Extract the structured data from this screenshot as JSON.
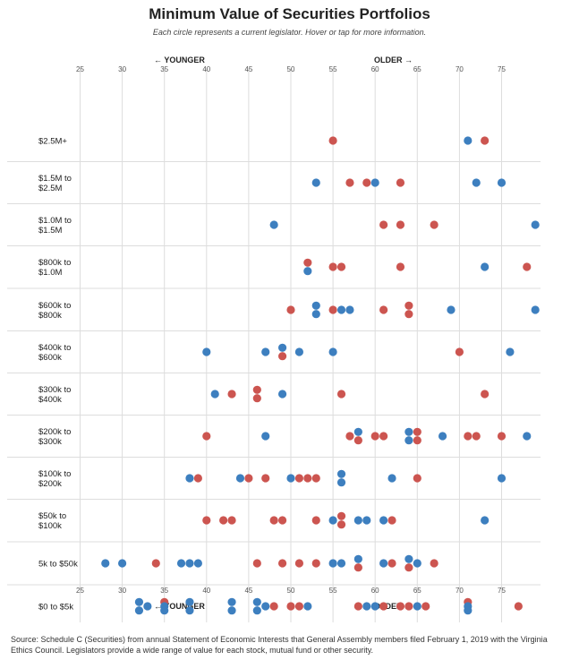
{
  "title": "Minimum Value of Securities Portfolios",
  "subtitle": "Each circle represents a current legislator. Hover or tap for more information.",
  "source": "Source: Schedule C (Securities) from annual Statement of Economic Interests that General Assembly members filed February 1, 2019 with the Virginia Ethics Council. Legislators provide a wide range of value for each stock, mutual fund or other security.",
  "colors": {
    "blue": "#3d7fbf",
    "red": "#cc5550",
    "grid": "#dddddd"
  },
  "chart_data": {
    "type": "scatter",
    "title": "Minimum Value of Securities Portfolios",
    "x_ticks": [
      25,
      30,
      35,
      40,
      45,
      50,
      55,
      60,
      65,
      70,
      75
    ],
    "xlim": [
      21,
      80
    ],
    "direction_labels": {
      "younger": "← YOUNGER",
      "older": "OLDER →"
    },
    "legend": "none",
    "grid": true,
    "rows": [
      {
        "label_lines": [
          "$2.5M+"
        ],
        "points": [
          [
            55,
            "R",
            0
          ],
          [
            71,
            "B",
            0
          ],
          [
            73,
            "R",
            0
          ]
        ]
      },
      {
        "label_lines": [
          "$1.5M to",
          "$2.5M"
        ],
        "points": [
          [
            53,
            "B",
            0
          ],
          [
            57,
            "R",
            0
          ],
          [
            59,
            "R",
            0
          ],
          [
            60,
            "B",
            0
          ],
          [
            63,
            "R",
            0
          ],
          [
            72,
            "B",
            0
          ],
          [
            75,
            "B",
            0
          ]
        ]
      },
      {
        "label_lines": [
          "$1.0M to",
          "$1.5M"
        ],
        "points": [
          [
            48,
            "B",
            0
          ],
          [
            61,
            "R",
            0
          ],
          [
            63,
            "R",
            0
          ],
          [
            67,
            "R",
            0
          ],
          [
            79,
            "B",
            0
          ]
        ]
      },
      {
        "label_lines": [
          "$800k to",
          "$1.0M"
        ],
        "points": [
          [
            52,
            "R",
            -1
          ],
          [
            52,
            "B",
            1
          ],
          [
            55,
            "R",
            0
          ],
          [
            56,
            "R",
            0
          ],
          [
            63,
            "R",
            0
          ],
          [
            73,
            "B",
            0
          ],
          [
            78,
            "R",
            0
          ]
        ]
      },
      {
        "label_lines": [
          "$600k to",
          "$800k"
        ],
        "points": [
          [
            50,
            "R",
            0
          ],
          [
            53,
            "B",
            -1
          ],
          [
            53,
            "B",
            1
          ],
          [
            55,
            "R",
            0
          ],
          [
            56,
            "B",
            0
          ],
          [
            57,
            "B",
            0
          ],
          [
            61,
            "R",
            0
          ],
          [
            64,
            "R",
            -1
          ],
          [
            64,
            "R",
            1
          ],
          [
            69,
            "B",
            0
          ],
          [
            79,
            "B",
            0
          ]
        ]
      },
      {
        "label_lines": [
          "$400k to",
          "$600k"
        ],
        "points": [
          [
            40,
            "B",
            0
          ],
          [
            47,
            "B",
            0
          ],
          [
            49,
            "B",
            -1
          ],
          [
            49,
            "R",
            1
          ],
          [
            51,
            "B",
            0
          ],
          [
            55,
            "B",
            0
          ],
          [
            70,
            "R",
            0
          ],
          [
            76,
            "B",
            0
          ]
        ]
      },
      {
        "label_lines": [
          "$300k to",
          "$400k"
        ],
        "points": [
          [
            41,
            "B",
            0
          ],
          [
            43,
            "R",
            0
          ],
          [
            46,
            "R",
            -1
          ],
          [
            46,
            "R",
            1
          ],
          [
            49,
            "B",
            0
          ],
          [
            56,
            "R",
            0
          ],
          [
            73,
            "R",
            0
          ]
        ]
      },
      {
        "label_lines": [
          "$200k to",
          "$300k"
        ],
        "points": [
          [
            40,
            "R",
            0
          ],
          [
            47,
            "B",
            0
          ],
          [
            57,
            "R",
            0
          ],
          [
            58,
            "B",
            -1
          ],
          [
            58,
            "R",
            1
          ],
          [
            60,
            "R",
            0
          ],
          [
            61,
            "R",
            0
          ],
          [
            64,
            "B",
            -1
          ],
          [
            64,
            "B",
            1
          ],
          [
            65,
            "R",
            -1
          ],
          [
            65,
            "R",
            1
          ],
          [
            68,
            "B",
            0
          ],
          [
            71,
            "R",
            0
          ],
          [
            72,
            "R",
            0
          ],
          [
            75,
            "R",
            0
          ],
          [
            78,
            "B",
            0
          ]
        ]
      },
      {
        "label_lines": [
          "$100k to",
          "$200k"
        ],
        "points": [
          [
            38,
            "B",
            0
          ],
          [
            39,
            "R",
            0
          ],
          [
            44,
            "B",
            0
          ],
          [
            45,
            "R",
            0
          ],
          [
            47,
            "R",
            0
          ],
          [
            50,
            "B",
            0
          ],
          [
            51,
            "R",
            0
          ],
          [
            52,
            "R",
            0
          ],
          [
            53,
            "R",
            0
          ],
          [
            56,
            "B",
            -1
          ],
          [
            56,
            "B",
            1
          ],
          [
            62,
            "B",
            0
          ],
          [
            65,
            "R",
            0
          ],
          [
            75,
            "B",
            0
          ]
        ]
      },
      {
        "label_lines": [
          "$50k to",
          "$100k"
        ],
        "points": [
          [
            40,
            "R",
            0
          ],
          [
            42,
            "R",
            0
          ],
          [
            43,
            "R",
            0
          ],
          [
            48,
            "R",
            0
          ],
          [
            49,
            "R",
            0
          ],
          [
            53,
            "R",
            0
          ],
          [
            55,
            "B",
            0
          ],
          [
            56,
            "R",
            -1
          ],
          [
            56,
            "R",
            1
          ],
          [
            58,
            "B",
            0
          ],
          [
            59,
            "B",
            0
          ],
          [
            61,
            "B",
            0
          ],
          [
            62,
            "R",
            0
          ],
          [
            73,
            "B",
            0
          ]
        ]
      },
      {
        "label_lines": [
          "5k to $50k"
        ],
        "points": [
          [
            28,
            "B",
            0
          ],
          [
            30,
            "B",
            0
          ],
          [
            34,
            "R",
            0
          ],
          [
            37,
            "B",
            0
          ],
          [
            38,
            "B",
            0
          ],
          [
            39,
            "B",
            0
          ],
          [
            46,
            "R",
            0
          ],
          [
            49,
            "R",
            0
          ],
          [
            51,
            "R",
            0
          ],
          [
            53,
            "R",
            0
          ],
          [
            55,
            "B",
            0
          ],
          [
            56,
            "B",
            0
          ],
          [
            58,
            "B",
            -1
          ],
          [
            58,
            "R",
            1
          ],
          [
            61,
            "B",
            0
          ],
          [
            62,
            "R",
            0
          ],
          [
            64,
            "B",
            -1
          ],
          [
            64,
            "R",
            1
          ],
          [
            65,
            "B",
            0
          ],
          [
            67,
            "R",
            0
          ]
        ]
      },
      {
        "label_lines": [
          "$0 to $5k"
        ],
        "points": [
          [
            32,
            "B",
            -1
          ],
          [
            32,
            "B",
            1
          ],
          [
            33,
            "B",
            0
          ],
          [
            35,
            "R",
            -1
          ],
          [
            35,
            "B",
            0
          ],
          [
            35,
            "B",
            1
          ],
          [
            38,
            "B",
            -1
          ],
          [
            38,
            "B",
            1
          ],
          [
            43,
            "B",
            -1
          ],
          [
            43,
            "B",
            1
          ],
          [
            46,
            "B",
            -1
          ],
          [
            46,
            "B",
            1
          ],
          [
            47,
            "B",
            0
          ],
          [
            48,
            "R",
            0
          ],
          [
            50,
            "R",
            0
          ],
          [
            51,
            "R",
            0
          ],
          [
            52,
            "B",
            0
          ],
          [
            58,
            "R",
            0
          ],
          [
            59,
            "B",
            0
          ],
          [
            60,
            "B",
            0
          ],
          [
            61,
            "R",
            0
          ],
          [
            63,
            "R",
            0
          ],
          [
            64,
            "R",
            0
          ],
          [
            65,
            "B",
            0
          ],
          [
            66,
            "R",
            0
          ],
          [
            71,
            "R",
            -1
          ],
          [
            71,
            "B",
            0
          ],
          [
            71,
            "B",
            1
          ],
          [
            77,
            "R",
            0
          ]
        ]
      }
    ]
  }
}
